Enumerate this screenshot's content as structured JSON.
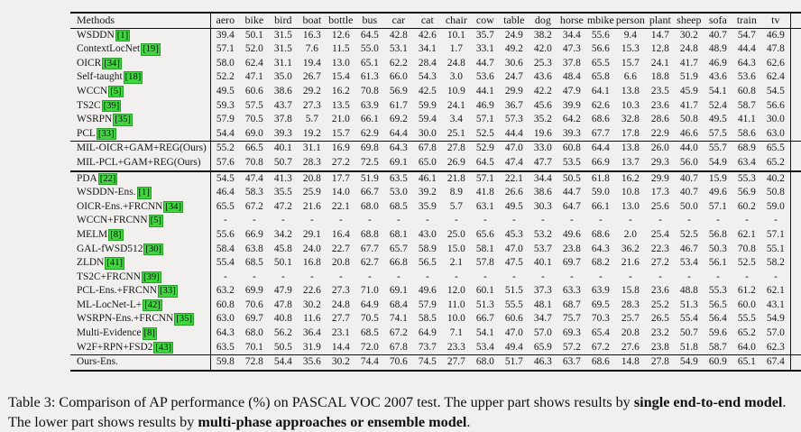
{
  "colors": {
    "page_background": "#f1f0ee",
    "citation_highlight": "#3fd63f",
    "text": "#141414",
    "rule": "#111111"
  },
  "table": {
    "columns": [
      "Methods",
      "aero",
      "bike",
      "bird",
      "boat",
      "bottle",
      "bus",
      "car",
      "cat",
      "chair",
      "cow",
      "table",
      "dog",
      "horse",
      "mbike",
      "person",
      "plant",
      "sheep",
      "sofa",
      "train",
      "tv",
      "mAP"
    ],
    "sections": [
      {
        "name": "upper-methods",
        "rows": [
          {
            "method": "WSDDN",
            "cite": "1",
            "values": [
              "39.4",
              "50.1",
              "31.5",
              "16.3",
              "12.6",
              "64.5",
              "42.8",
              "42.6",
              "10.1",
              "35.7",
              "24.9",
              "38.2",
              "34.4",
              "55.6",
              "9.4",
              "14.7",
              "30.2",
              "40.7",
              "54.7",
              "46.9"
            ],
            "map": "34.8"
          },
          {
            "method": "ContextLocNet",
            "cite": "19",
            "values": [
              "57.1",
              "52.0",
              "31.5",
              "7.6",
              "11.5",
              "55.0",
              "53.1",
              "34.1",
              "1.7",
              "33.1",
              "49.2",
              "42.0",
              "47.3",
              "56.6",
              "15.3",
              "12.8",
              "24.8",
              "48.9",
              "44.4",
              "47.8"
            ],
            "map": "36.3"
          },
          {
            "method": "OICR",
            "cite": "34",
            "values": [
              "58.0",
              "62.4",
              "31.1",
              "19.4",
              "13.0",
              "65.1",
              "62.2",
              "28.4",
              "24.8",
              "44.7",
              "30.6",
              "25.3",
              "37.8",
              "65.5",
              "15.7",
              "24.1",
              "41.7",
              "46.9",
              "64.3",
              "62.6"
            ],
            "map": "41.2"
          },
          {
            "method": "Self-taught",
            "cite": "18",
            "values": [
              "52.2",
              "47.1",
              "35.0",
              "26.7",
              "15.4",
              "61.3",
              "66.0",
              "54.3",
              "3.0",
              "53.6",
              "24.7",
              "43.6",
              "48.4",
              "65.8",
              "6.6",
              "18.8",
              "51.9",
              "43.6",
              "53.6",
              "62.4"
            ],
            "map": "41.7"
          },
          {
            "method": "WCCN",
            "cite": "5",
            "values": [
              "49.5",
              "60.6",
              "38.6",
              "29.2",
              "16.2",
              "70.8",
              "56.9",
              "42.5",
              "10.9",
              "44.1",
              "29.9",
              "42.2",
              "47.9",
              "64.1",
              "13.8",
              "23.5",
              "45.9",
              "54.1",
              "60.8",
              "54.5"
            ],
            "map": "42.8"
          },
          {
            "method": "TS2C",
            "cite": "39",
            "values": [
              "59.3",
              "57.5",
              "43.7",
              "27.3",
              "13.5",
              "63.9",
              "61.7",
              "59.9",
              "24.1",
              "46.9",
              "36.7",
              "45.6",
              "39.9",
              "62.6",
              "10.3",
              "23.6",
              "41.7",
              "52.4",
              "58.7",
              "56.6"
            ],
            "map": "44.3"
          },
          {
            "method": "WSRPN",
            "cite": "35",
            "values": [
              "57.9",
              "70.5",
              "37.8",
              "5.7",
              "21.0",
              "66.1",
              "69.2",
              "59.4",
              "3.4",
              "57.1",
              "57.3",
              "35.2",
              "64.2",
              "68.6",
              "32.8",
              "28.6",
              "50.8",
              "49.5",
              "41.1",
              "30.0"
            ],
            "map": "45.3"
          },
          {
            "method": "PCL",
            "cite": "33",
            "values": [
              "54.4",
              "69.0",
              "39.3",
              "19.2",
              "15.7",
              "62.9",
              "64.4",
              "30.0",
              "25.1",
              "52.5",
              "44.4",
              "19.6",
              "39.3",
              "67.7",
              "17.8",
              "22.9",
              "46.6",
              "57.5",
              "58.6",
              "63.0"
            ],
            "map": "43.5"
          }
        ]
      },
      {
        "name": "upper-ours",
        "rows": [
          {
            "method": "MIL-OICR+GAM+REG(Ours)",
            "cite": null,
            "values": [
              "55.2",
              "66.5",
              "40.1",
              "31.1",
              "16.9",
              "69.8",
              "64.3",
              "67.8",
              "27.8",
              "52.9",
              "47.0",
              "33.0",
              "60.8",
              "64.4",
              "13.8",
              "26.0",
              "44.0",
              "55.7",
              "68.9",
              "65.5"
            ],
            "map": "48.6"
          },
          {
            "method": "MIL-PCL+GAM+REG(Ours)",
            "cite": null,
            "values": [
              "57.6",
              "70.8",
              "50.7",
              "28.3",
              "27.2",
              "72.5",
              "69.1",
              "65.0",
              "26.9",
              "64.5",
              "47.4",
              "47.7",
              "53.5",
              "66.9",
              "13.7",
              "29.3",
              "56.0",
              "54.9",
              "63.4",
              "65.2"
            ],
            "map": "51.5"
          }
        ]
      },
      {
        "name": "lower-methods",
        "rows": [
          {
            "method": "PDA",
            "cite": "22",
            "values": [
              "54.5",
              "47.4",
              "41.3",
              "20.8",
              "17.7",
              "51.9",
              "63.5",
              "46.1",
              "21.8",
              "57.1",
              "22.1",
              "34.4",
              "50.5",
              "61.8",
              "16.2",
              "29.9",
              "40.7",
              "15.9",
              "55.3",
              "40.2"
            ],
            "map": "39.5"
          },
          {
            "method": "WSDDN-Ens.",
            "cite": "1",
            "values": [
              "46.4",
              "58.3",
              "35.5",
              "25.9",
              "14.0",
              "66.7",
              "53.0",
              "39.2",
              "8.9",
              "41.8",
              "26.6",
              "38.6",
              "44.7",
              "59.0",
              "10.8",
              "17.3",
              "40.7",
              "49.6",
              "56.9",
              "50.8"
            ],
            "map": "39.3"
          },
          {
            "method": "OICR-Ens.+FRCNN",
            "cite": "34",
            "values": [
              "65.5",
              "67.2",
              "47.2",
              "21.6",
              "22.1",
              "68.0",
              "68.5",
              "35.9",
              "5.7",
              "63.1",
              "49.5",
              "30.3",
              "64.7",
              "66.1",
              "13.0",
              "25.6",
              "50.0",
              "57.1",
              "60.2",
              "59.0"
            ],
            "map": "47.0"
          },
          {
            "method": "WCCN+FRCNN",
            "cite": "5",
            "values": [
              "-",
              "-",
              "-",
              "-",
              "-",
              "-",
              "-",
              "-",
              "-",
              "-",
              "-",
              "-",
              "-",
              "-",
              "-",
              "-",
              "-",
              "-",
              "-",
              "-"
            ],
            "map": "43.1"
          },
          {
            "method": "MELM",
            "cite": "8",
            "values": [
              "55.6",
              "66.9",
              "34.2",
              "29.1",
              "16.4",
              "68.8",
              "68.1",
              "43.0",
              "25.0",
              "65.6",
              "45.3",
              "53.2",
              "49.6",
              "68.6",
              "2.0",
              "25.4",
              "52.5",
              "56.8",
              "62.1",
              "57.1"
            ],
            "map": "47.3"
          },
          {
            "method": "GAL-fWSD512",
            "cite": "30",
            "values": [
              "58.4",
              "63.8",
              "45.8",
              "24.0",
              "22.7",
              "67.7",
              "65.7",
              "58.9",
              "15.0",
              "58.1",
              "47.0",
              "53.7",
              "23.8",
              "64.3",
              "36.2",
              "22.3",
              "46.7",
              "50.3",
              "70.8",
              "55.1"
            ],
            "map": "47.5"
          },
          {
            "method": "ZLDN",
            "cite": "41",
            "values": [
              "55.4",
              "68.5",
              "50.1",
              "16.8",
              "20.8",
              "62.7",
              "66.8",
              "56.5",
              "2.1",
              "57.8",
              "47.5",
              "40.1",
              "69.7",
              "68.2",
              "21.6",
              "27.2",
              "53.4",
              "56.1",
              "52.5",
              "58.2"
            ],
            "map": "47.6"
          },
          {
            "method": "TS2C+FRCNN",
            "cite": "39",
            "values": [
              "-",
              "-",
              "-",
              "-",
              "-",
              "-",
              "-",
              "-",
              "-",
              "-",
              "-",
              "-",
              "-",
              "-",
              "-",
              "-",
              "-",
              "-",
              "-",
              "-"
            ],
            "map": "48.0"
          },
          {
            "method": "PCL-Ens.+FRCNN",
            "cite": "33",
            "values": [
              "63.2",
              "69.9",
              "47.9",
              "22.6",
              "27.3",
              "71.0",
              "69.1",
              "49.6",
              "12.0",
              "60.1",
              "51.5",
              "37.3",
              "63.3",
              "63.9",
              "15.8",
              "23.6",
              "48.8",
              "55.3",
              "61.2",
              "62.1"
            ],
            "map": "48.8"
          },
          {
            "method": "ML-LocNet-L+",
            "cite": "42",
            "values": [
              "60.8",
              "70.6",
              "47.8",
              "30.2",
              "24.8",
              "64.9",
              "68.4",
              "57.9",
              "11.0",
              "51.3",
              "55.5",
              "48.1",
              "68.7",
              "69.5",
              "28.3",
              "25.2",
              "51.3",
              "56.5",
              "60.0",
              "43.1"
            ],
            "map": "49.7"
          },
          {
            "method": "WSRPN-Ens.+FRCNN",
            "cite": "35",
            "values": [
              "63.0",
              "69.7",
              "40.8",
              "11.6",
              "27.7",
              "70.5",
              "74.1",
              "58.5",
              "10.0",
              "66.7",
              "60.6",
              "34.7",
              "75.7",
              "70.3",
              "25.7",
              "26.5",
              "55.4",
              "56.4",
              "55.5",
              "54.9"
            ],
            "map": "50.4"
          },
          {
            "method": "Multi-Evidence",
            "cite": "8",
            "values": [
              "64.3",
              "68.0",
              "56.2",
              "36.4",
              "23.1",
              "68.5",
              "67.2",
              "64.9",
              "7.1",
              "54.1",
              "47.0",
              "57.0",
              "69.3",
              "65.4",
              "20.8",
              "23.2",
              "50.7",
              "59.6",
              "65.2",
              "57.0"
            ],
            "map": "51.2"
          },
          {
            "method": "W2F+RPN+FSD2",
            "cite": "43",
            "values": [
              "63.5",
              "70.1",
              "50.5",
              "31.9",
              "14.4",
              "72.0",
              "67.8",
              "73.7",
              "23.3",
              "53.4",
              "49.4",
              "65.9",
              "57.2",
              "67.2",
              "27.6",
              "23.8",
              "51.8",
              "58.7",
              "64.0",
              "62.3"
            ],
            "map": "52.4"
          }
        ]
      },
      {
        "name": "lower-ours",
        "rows": [
          {
            "method": "Ours-Ens.",
            "cite": null,
            "values": [
              "59.8",
              "72.8",
              "54.4",
              "35.6",
              "30.2",
              "74.4",
              "70.6",
              "74.5",
              "27.7",
              "68.0",
              "51.7",
              "46.3",
              "63.7",
              "68.6",
              "14.8",
              "27.8",
              "54.9",
              "60.9",
              "65.1",
              "67.4"
            ],
            "map": "54.5"
          }
        ]
      }
    ]
  },
  "caption": {
    "segments": [
      {
        "text": "Table 3: Comparison of AP performance (%) on PASCAL VOC 2007 test. The upper part shows results by ",
        "bold": false
      },
      {
        "text": "single end-to-end model",
        "bold": true
      },
      {
        "text": ". The lower part shows results by ",
        "bold": false
      },
      {
        "text": "multi-phase approaches or ensemble model",
        "bold": true
      },
      {
        "text": ".",
        "bold": false
      }
    ]
  }
}
